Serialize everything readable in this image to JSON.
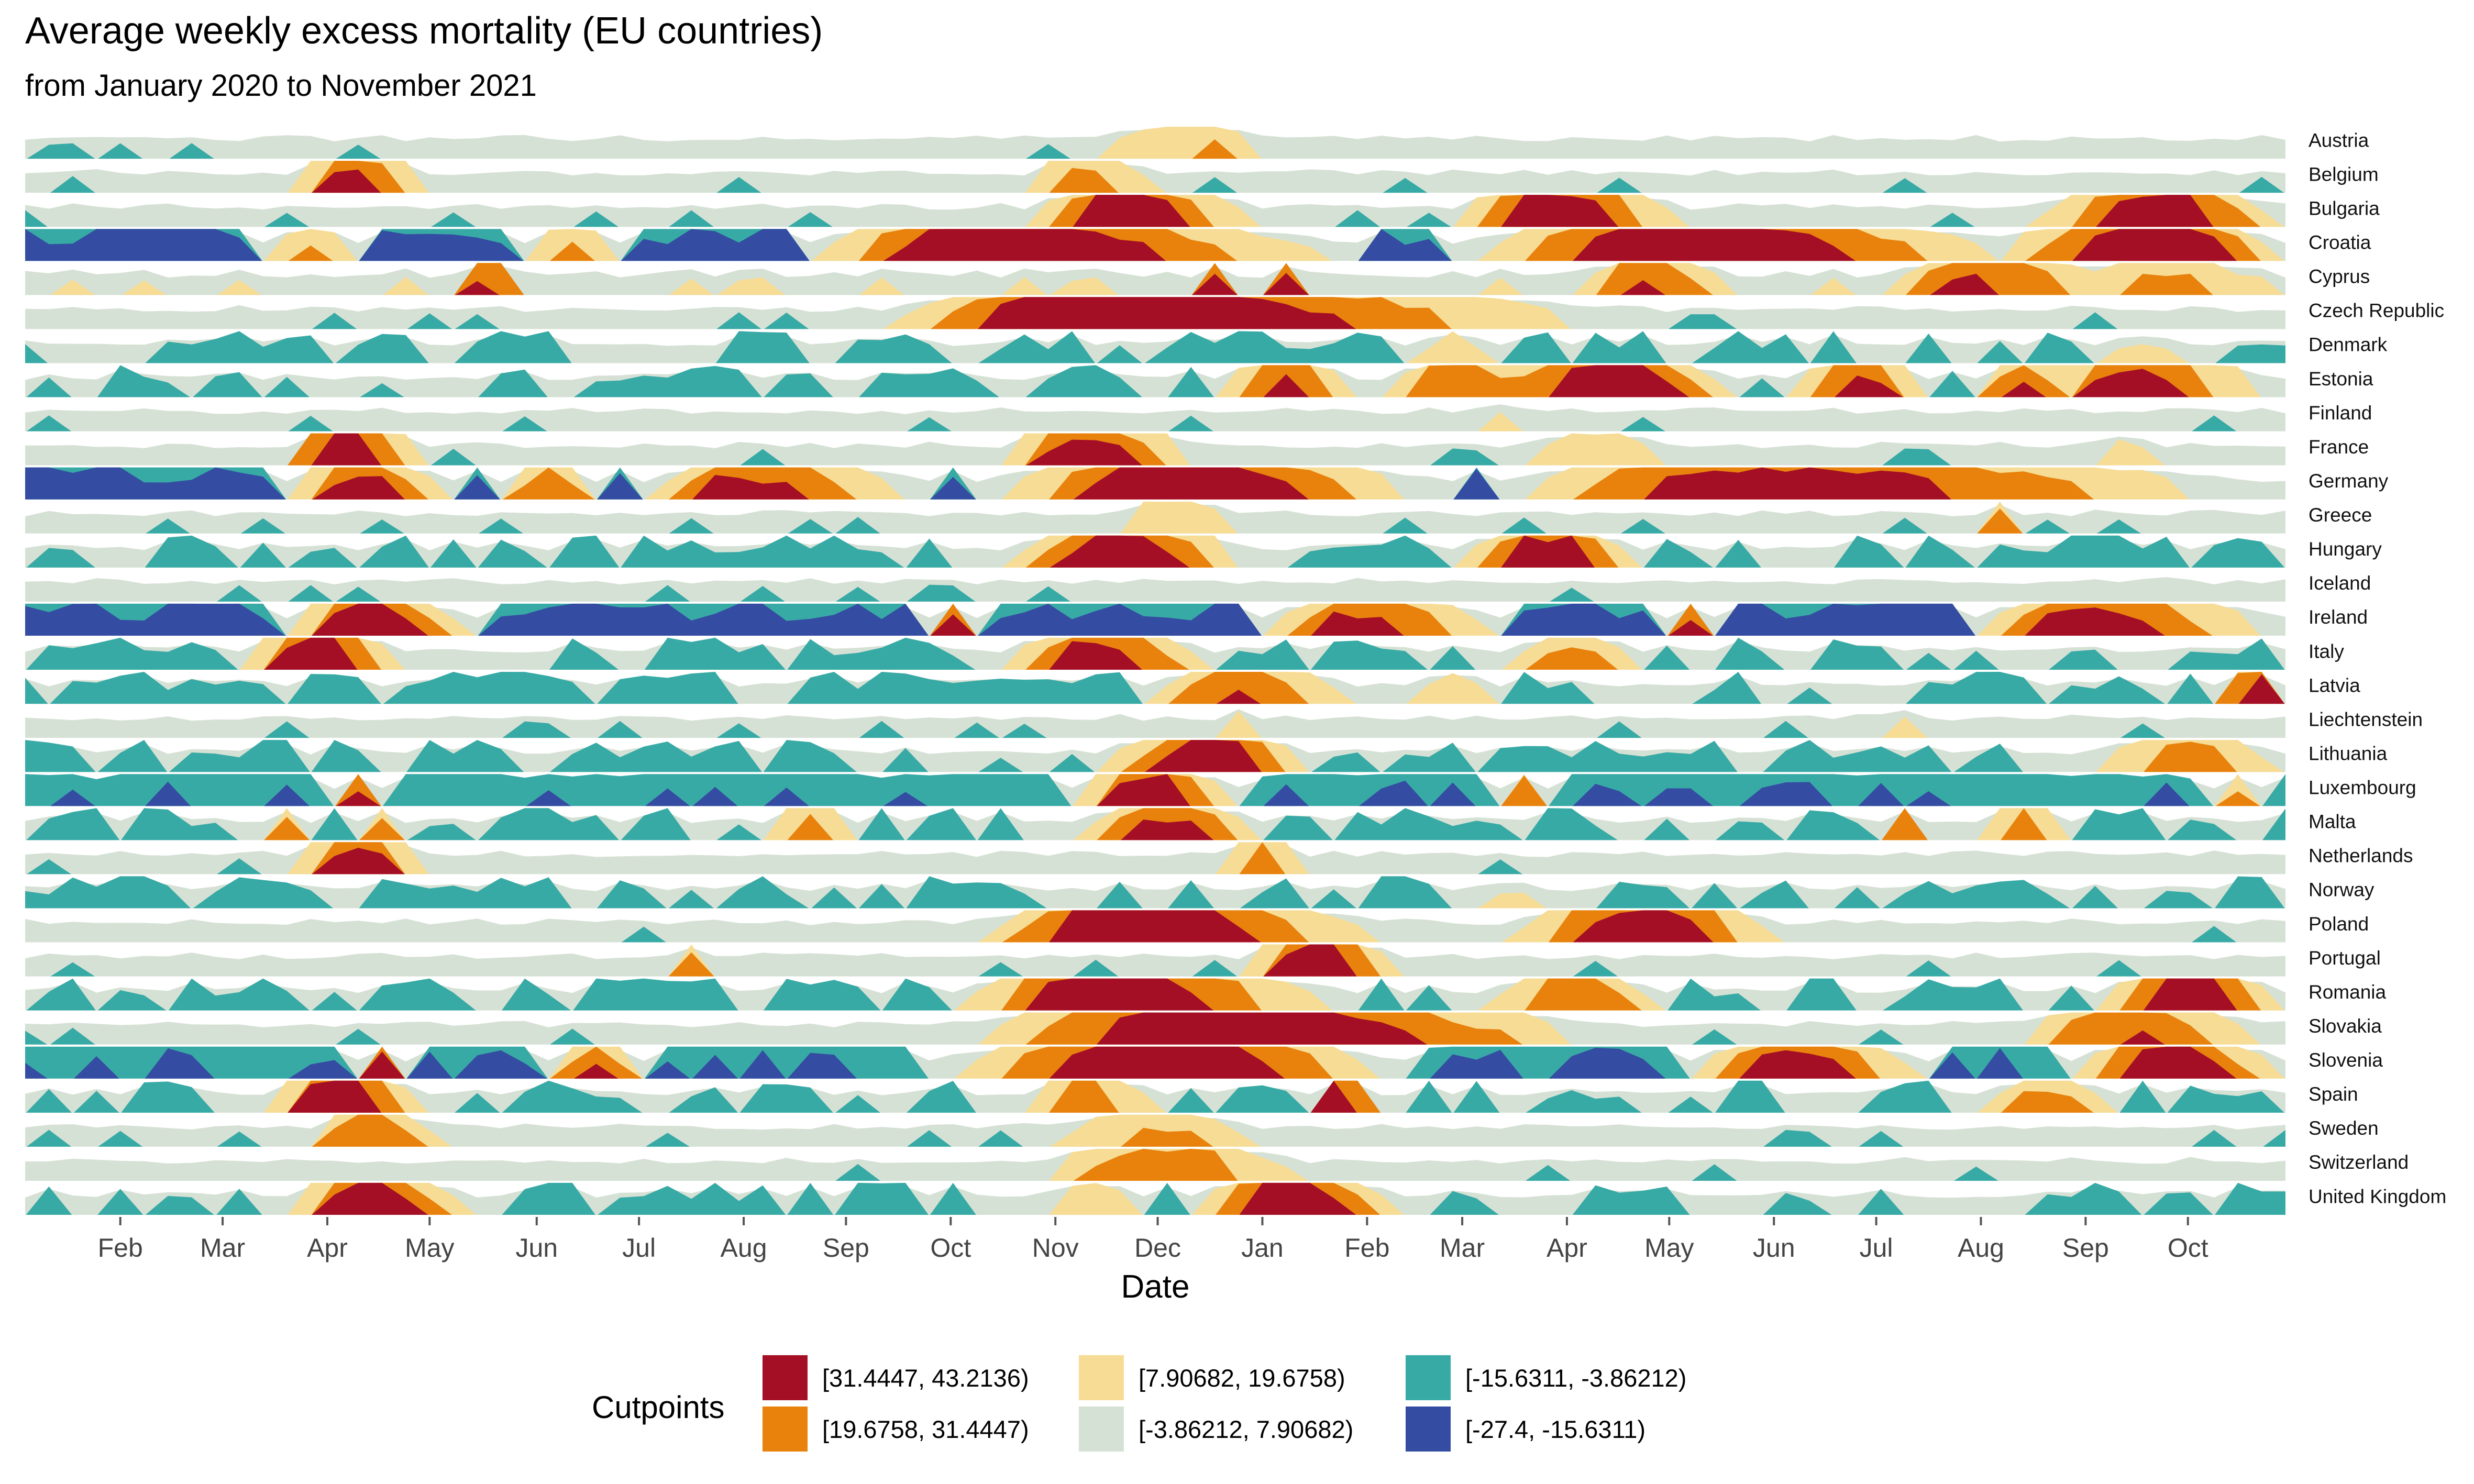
{
  "chart_data": {
    "type": "area",
    "title": "Average weekly excess mortality (EU countries)",
    "subtitle": "from January 2020 to November 2021",
    "xlabel": "Date",
    "ylabel": "",
    "x_tick_labels": [
      "Feb",
      "Mar",
      "Apr",
      "May",
      "Jun",
      "Jul",
      "Aug",
      "Sep",
      "Oct",
      "Nov",
      "Dec",
      "Jan",
      "Feb",
      "Mar",
      "Apr",
      "May",
      "Jun",
      "Jul",
      "Aug",
      "Sep",
      "Oct"
    ],
    "x_ticks_week": [
      4,
      8.3,
      12.7,
      17,
      21.5,
      25.8,
      30.2,
      34.5,
      38.9,
      43.3,
      47.6,
      52,
      56.4,
      60.4,
      64.8,
      69.1,
      73.5,
      77.8,
      82.2,
      86.6,
      90.9
    ],
    "x_range_week": [
      0,
      95
    ],
    "legend_title": "Cutpoints",
    "legend_position": "bottom",
    "bins": [
      {
        "label": "[31.4447, 43.2136)",
        "color": "#A50F26"
      },
      {
        "label": "[19.6758, 31.4447)",
        "color": "#E8820C"
      },
      {
        "label": "[7.90682, 19.6758)",
        "color": "#F6DC95"
      },
      {
        "label": "[-3.86212, 7.90682)",
        "color": "#D6E1D5"
      },
      {
        "label": "[-15.6311, -3.86212)",
        "color": "#38AAA5"
      },
      {
        "label": "[-27.4, -15.6311)",
        "color": "#344DA2"
      }
    ],
    "countries": [
      {
        "name": "Austria",
        "episodes": [
          [
            44,
            48,
            54,
            16
          ],
          [
            47,
            50,
            52,
            22
          ]
        ],
        "level": 1
      },
      {
        "name": "Belgium",
        "episodes": [
          [
            11,
            13.5,
            17,
            36
          ],
          [
            42,
            44,
            48,
            25
          ],
          [
            32,
            32.5,
            33,
            12
          ]
        ],
        "level": 1
      },
      {
        "name": "Bulgaria",
        "episodes": [
          [
            42,
            46,
            52,
            40
          ],
          [
            60,
            64,
            70,
            40
          ],
          [
            84,
            90,
            95,
            39
          ]
        ],
        "level": 1
      },
      {
        "name": "Croatia",
        "episodes": [
          [
            33,
            40,
            56,
            42
          ],
          [
            60,
            70,
            84,
            42
          ],
          [
            82,
            90,
            95,
            42
          ],
          [
            10,
            12,
            14,
            22
          ],
          [
            21,
            23,
            25,
            22
          ]
        ],
        "level": -22
      },
      {
        "name": "Cyprus",
        "episodes": [
          [
            18,
            19.5,
            21,
            34
          ],
          [
            49,
            50,
            51,
            34
          ],
          [
            52,
            53,
            54,
            34
          ],
          [
            65,
            68,
            72,
            30
          ],
          [
            78,
            82,
            88,
            33
          ],
          [
            85,
            90,
            95,
            22
          ]
        ],
        "level": 4
      },
      {
        "name": "Czech Republic",
        "episodes": [
          [
            36,
            44,
            68,
            42
          ]
        ],
        "level": 1
      },
      {
        "name": "Denmark",
        "episodes": [
          [
            58,
            60,
            62,
            14
          ],
          [
            87,
            89,
            91,
            12
          ]
        ],
        "level": -6
      },
      {
        "name": "Estonia",
        "episodes": [
          [
            50,
            53,
            56,
            34
          ],
          [
            57,
            60,
            64,
            30
          ],
          [
            60,
            67,
            72,
            40
          ],
          [
            74,
            77,
            80,
            34
          ],
          [
            82,
            84,
            86,
            34
          ],
          [
            85,
            88,
            95,
            36
          ]
        ],
        "level": -5
      },
      {
        "name": "Finland",
        "episodes": [
          [
            60,
            62,
            64,
            10
          ]
        ],
        "level": 1
      },
      {
        "name": "France",
        "episodes": [
          [
            11,
            13,
            17,
            40
          ],
          [
            41,
            44,
            50,
            36
          ],
          [
            62,
            66,
            70,
            16
          ],
          [
            86,
            88,
            90,
            12
          ]
        ],
        "level": 1
      },
      {
        "name": "Germany",
        "episodes": [
          [
            11,
            14,
            18,
            34
          ],
          [
            26,
            30,
            38,
            34
          ],
          [
            40,
            48,
            60,
            40
          ],
          [
            62,
            72,
            95,
            38
          ],
          [
            20,
            22,
            24,
            30
          ]
        ],
        "level": -22
      },
      {
        "name": "Greece",
        "episodes": [
          [
            45,
            48,
            52,
            16
          ],
          [
            82,
            83,
            84,
            24
          ]
        ],
        "level": 1
      },
      {
        "name": "Hungary",
        "episodes": [
          [
            41,
            46,
            52,
            38
          ],
          [
            60,
            64,
            68,
            38
          ]
        ],
        "level": -6
      },
      {
        "name": "Iceland",
        "episodes": [
          [
            88,
            90,
            92,
            8
          ]
        ],
        "level": 1
      },
      {
        "name": "Ireland",
        "episodes": [
          [
            11,
            14,
            19,
            40
          ],
          [
            52,
            56,
            62,
            34
          ],
          [
            69,
            70,
            71,
            34
          ],
          [
            82,
            86,
            95,
            36
          ],
          [
            38,
            39,
            40,
            34
          ]
        ],
        "level": -22
      },
      {
        "name": "Italy",
        "episodes": [
          [
            9,
            12,
            16,
            40
          ],
          [
            41,
            45,
            50,
            36
          ],
          [
            62,
            65,
            68,
            24
          ]
        ],
        "level": -6
      },
      {
        "name": "Latvia",
        "episodes": [
          [
            47,
            51,
            56,
            30
          ],
          [
            58,
            60,
            62,
            16
          ],
          [
            92,
            94,
            95,
            40
          ]
        ],
        "level": -6
      },
      {
        "name": "Liechtenstein",
        "episodes": [
          [
            50,
            51,
            52,
            12
          ],
          [
            78,
            79,
            80,
            12
          ]
        ],
        "level": 1
      },
      {
        "name": "Lithuania",
        "episodes": [
          [
            45,
            50,
            54,
            40
          ],
          [
            86,
            91,
            95,
            25
          ]
        ],
        "level": -6
      },
      {
        "name": "Luxembourg",
        "episodes": [
          [
            44,
            47,
            51,
            38
          ],
          [
            13,
            14,
            15,
            32
          ],
          [
            62,
            63,
            64,
            26
          ],
          [
            92,
            93,
            94,
            22
          ]
        ],
        "level": -14
      },
      {
        "name": "Malta",
        "episodes": [
          [
            44,
            48,
            52,
            34
          ],
          [
            10,
            11,
            12,
            22
          ],
          [
            14,
            15,
            16,
            22
          ],
          [
            31,
            33,
            35,
            26
          ],
          [
            82,
            84,
            86,
            28
          ],
          [
            78,
            79,
            80,
            26
          ]
        ],
        "level": -6
      },
      {
        "name": "Netherlands",
        "episodes": [
          [
            11,
            14,
            17,
            36
          ],
          [
            50,
            52,
            54,
            28
          ]
        ],
        "level": 1
      },
      {
        "name": "Norway",
        "episodes": [
          [
            60,
            62,
            64,
            10
          ]
        ],
        "level": -6
      },
      {
        "name": "Poland",
        "episodes": [
          [
            40,
            46,
            58,
            42
          ],
          [
            62,
            68,
            74,
            40
          ]
        ],
        "level": 1
      },
      {
        "name": "Portugal",
        "episodes": [
          [
            51,
            54,
            58,
            40
          ],
          [
            27,
            28,
            29,
            26
          ]
        ],
        "level": 1
      },
      {
        "name": "Romania",
        "episodes": [
          [
            39,
            45,
            56,
            40
          ],
          [
            61,
            65,
            69,
            30
          ],
          [
            87,
            91,
            95,
            40
          ]
        ],
        "level": -6
      },
      {
        "name": "Slovakia",
        "episodes": [
          [
            39,
            50,
            68,
            42
          ],
          [
            83,
            88,
            95,
            30
          ]
        ],
        "level": 1
      },
      {
        "name": "Slovenia",
        "episodes": [
          [
            38,
            48,
            58,
            42
          ],
          [
            70,
            74,
            80,
            36
          ],
          [
            86,
            90,
            95,
            40
          ],
          [
            14,
            15,
            16,
            36
          ],
          [
            22,
            24,
            26,
            30
          ]
        ],
        "level": -16
      },
      {
        "name": "Spain",
        "episodes": [
          [
            10,
            13,
            17,
            42
          ],
          [
            42,
            44,
            48,
            28
          ],
          [
            54,
            55,
            57,
            40
          ],
          [
            82,
            85,
            88,
            24
          ]
        ],
        "level": -6
      },
      {
        "name": "Sweden",
        "episodes": [
          [
            12,
            14,
            18,
            30
          ],
          [
            42,
            48,
            52,
            20
          ]
        ],
        "level": 1
      },
      {
        "name": "Switzerland",
        "episodes": [
          [
            42,
            48,
            54,
            28
          ]
        ],
        "level": 1
      },
      {
        "name": "United Kingdom",
        "episodes": [
          [
            11,
            14,
            19,
            40
          ],
          [
            49,
            53,
            58,
            40
          ],
          [
            42,
            45,
            47,
            16
          ]
        ],
        "level": -6
      }
    ]
  }
}
